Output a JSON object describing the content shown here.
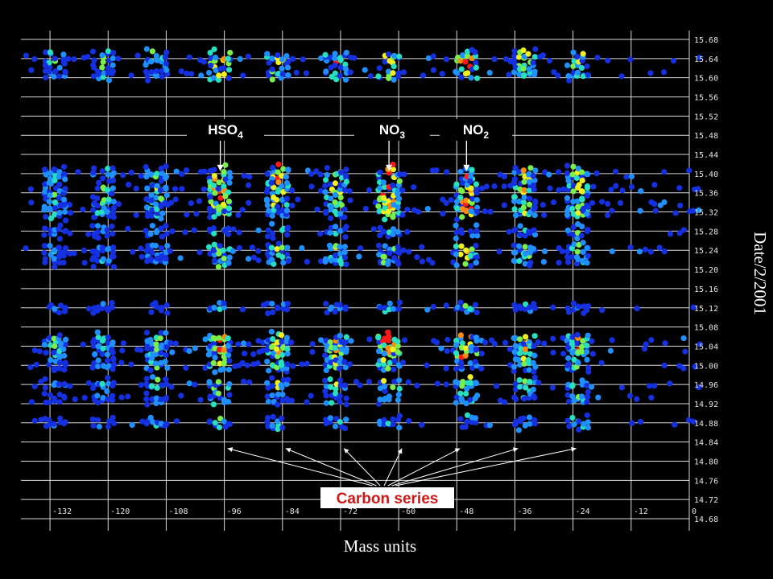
{
  "chart_data": {
    "type": "scatter",
    "title": "",
    "xlabel": "Mass units",
    "ylabel": "Date/2/2001",
    "xlim": [
      -138,
      0
    ],
    "ylim": [
      14.68,
      15.68
    ],
    "xticks": [
      "-132",
      "-120",
      "-108",
      "-96",
      "-84",
      "-72",
      "-60",
      "-48",
      "-36",
      "-24",
      "-12",
      "0"
    ],
    "yticks": [
      "15.68",
      "15.64",
      "15.60",
      "15.56",
      "15.52",
      "15.48",
      "15.44",
      "15.40",
      "15.36",
      "15.32",
      "15.28",
      "15.24",
      "15.20",
      "15.16",
      "15.12",
      "15.08",
      "15.04",
      "15.00",
      "14.96",
      "14.92",
      "14.88",
      "14.84",
      "14.80",
      "14.76",
      "14.72",
      "14.68"
    ],
    "color_scale": [
      "#1530e0",
      "#1e90ff",
      "#27e0c0",
      "#7cf04a",
      "#f0f020",
      "#ff8a10",
      "#ff1a1a"
    ],
    "bands": [
      {
        "date": 15.64,
        "intensity": 0.9
      },
      {
        "date": 15.61,
        "intensity": 0.6
      },
      {
        "date": 15.4,
        "intensity": 0.8
      },
      {
        "date": 15.37,
        "intensity": 0.9
      },
      {
        "date": 15.34,
        "intensity": 0.8
      },
      {
        "date": 15.32,
        "intensity": 0.7
      },
      {
        "date": 15.28,
        "intensity": 0.4
      },
      {
        "date": 15.24,
        "intensity": 0.6
      },
      {
        "date": 15.22,
        "intensity": 0.5
      },
      {
        "date": 15.12,
        "intensity": 0.3
      },
      {
        "date": 15.05,
        "intensity": 0.9
      },
      {
        "date": 15.03,
        "intensity": 0.8
      },
      {
        "date": 15.0,
        "intensity": 0.6
      },
      {
        "date": 14.96,
        "intensity": 0.6
      },
      {
        "date": 14.93,
        "intensity": 0.4
      },
      {
        "date": 14.88,
        "intensity": 0.4
      }
    ],
    "mass_peaks": [
      {
        "mass": -97,
        "strength": 0.9
      },
      {
        "mass": -85,
        "strength": 0.7
      },
      {
        "mass": -73,
        "strength": 0.7
      },
      {
        "mass": -62,
        "strength": 1.0
      },
      {
        "mass": -46,
        "strength": 1.0
      },
      {
        "mass": -34,
        "strength": 0.7
      },
      {
        "mass": -23,
        "strength": 0.7
      },
      {
        "mass": -110,
        "strength": 0.5
      },
      {
        "mass": -121,
        "strength": 0.4
      },
      {
        "mass": -131,
        "strength": 0.4
      }
    ],
    "annotations": [
      {
        "label": "HSO",
        "sub": "4",
        "target_mass": -97,
        "target_date": 15.4
      },
      {
        "label": "NO",
        "sub": "3",
        "target_mass": -62,
        "target_date": 15.4
      },
      {
        "label": "NO",
        "sub": "2",
        "target_mass": -46,
        "target_date": 15.4
      }
    ],
    "carbon_series": {
      "label": "Carbon series",
      "target_masses": [
        -96,
        -84,
        -72,
        -60,
        -48,
        -36,
        -24
      ],
      "target_date": 14.84
    }
  }
}
